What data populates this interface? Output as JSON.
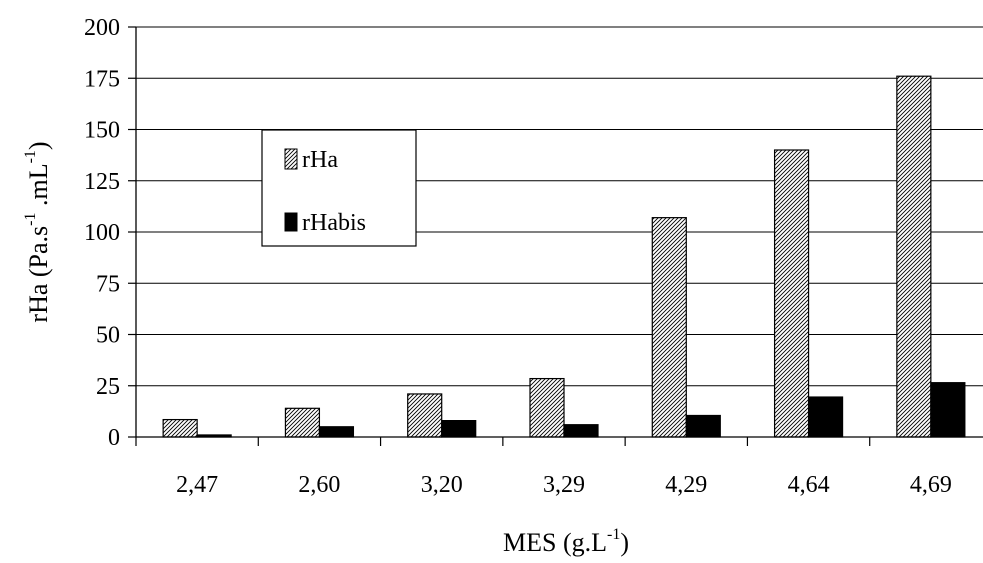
{
  "chart_data": {
    "type": "bar",
    "categories": [
      "2,47",
      "2,60",
      "3,20",
      "3,29",
      "4,29",
      "4,64",
      "4,69"
    ],
    "series": [
      {
        "name": "rHa",
        "values": [
          8.5,
          14,
          21,
          28.5,
          107,
          140,
          176
        ],
        "color": "#ffffff",
        "pattern": "diagonal-hatch"
      },
      {
        "name": "rHabis",
        "values": [
          1,
          5,
          8,
          6,
          10.5,
          19.5,
          26.5
        ],
        "color": "#000000",
        "pattern": "solid"
      }
    ],
    "xlabel": {
      "base": "MES (g.L",
      "sup": "-1",
      "tail": ")"
    },
    "ylabel": {
      "base1": "rHa (Pa.s",
      "sup1": "-1",
      "mid": " .mL",
      "sup2": "-1",
      "tail": ")"
    },
    "ylim": [
      0,
      200
    ],
    "yticks": [
      0,
      25,
      50,
      75,
      100,
      125,
      150,
      175,
      200
    ],
    "grid": true,
    "legend_position": "upper-left"
  }
}
